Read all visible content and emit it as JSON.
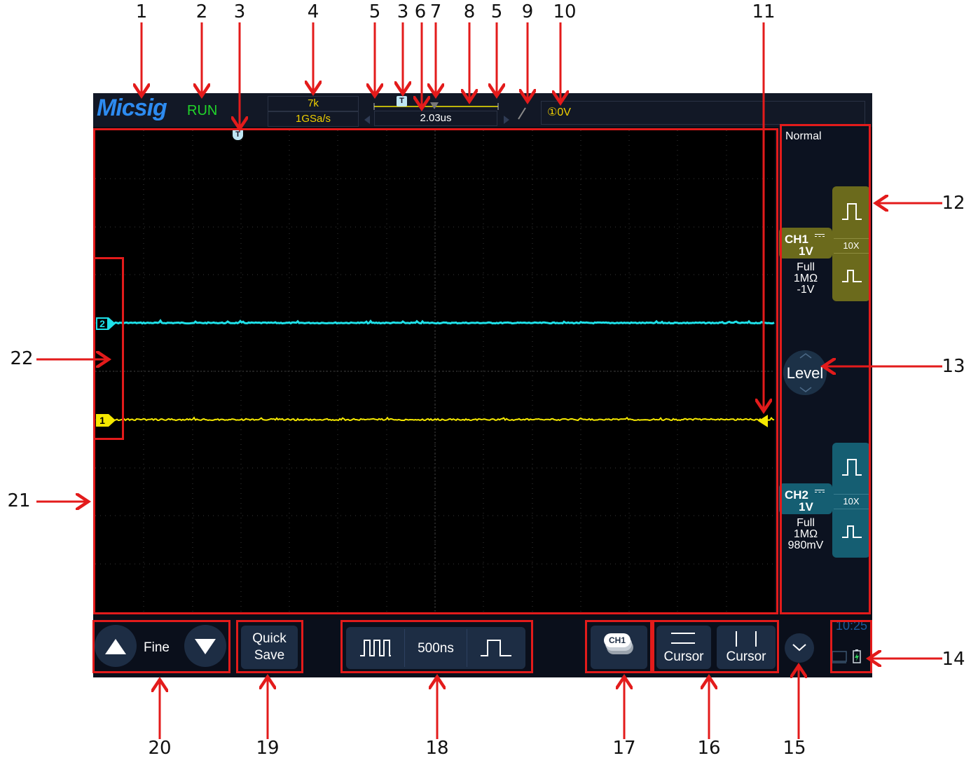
{
  "callouts": {
    "top": [
      "1",
      "2",
      "3",
      "4",
      "5",
      "3",
      "6",
      "7",
      "8",
      "5",
      "9",
      "10",
      "11"
    ],
    "right": [
      "12",
      "13",
      "14"
    ],
    "left": [
      "22",
      "21"
    ],
    "bottom": [
      "20",
      "19",
      "18",
      "17",
      "16",
      "15"
    ]
  },
  "header": {
    "logo": "Micsig",
    "run_status": "RUN",
    "memory_depth": "7k",
    "sample_rate": "1GSa/s",
    "trigger_position": "2.03us",
    "trigger_level": "①0V",
    "timeline_marker": "T"
  },
  "trigger_mode": "Normal",
  "channels": {
    "ch1": {
      "name": "CH1",
      "scale": "1V",
      "bandwidth": "Full",
      "impedance": "1MΩ",
      "offset": "-1V",
      "probe": "10X",
      "marker": "1",
      "color": "#f5e800"
    },
    "ch2": {
      "name": "CH2",
      "scale": "1V",
      "bandwidth": "Full",
      "impedance": "1MΩ",
      "offset": "980mV",
      "probe": "10X",
      "marker": "2",
      "color": "#1ee0e8"
    }
  },
  "level_button": "Level",
  "bottom": {
    "fine_label": "Fine",
    "quick_save": "Quick Save",
    "timebase": "500ns",
    "ch_select": "CH1",
    "cursor_h": "Cursor",
    "cursor_v": "Cursor",
    "clock": "10:25"
  },
  "colors": {
    "callout_red": "#e31b1b",
    "ch1": "#f5e800",
    "ch2": "#1ee0e8",
    "run_green": "#21d42a",
    "logo_blue": "#2d8bf0"
  }
}
